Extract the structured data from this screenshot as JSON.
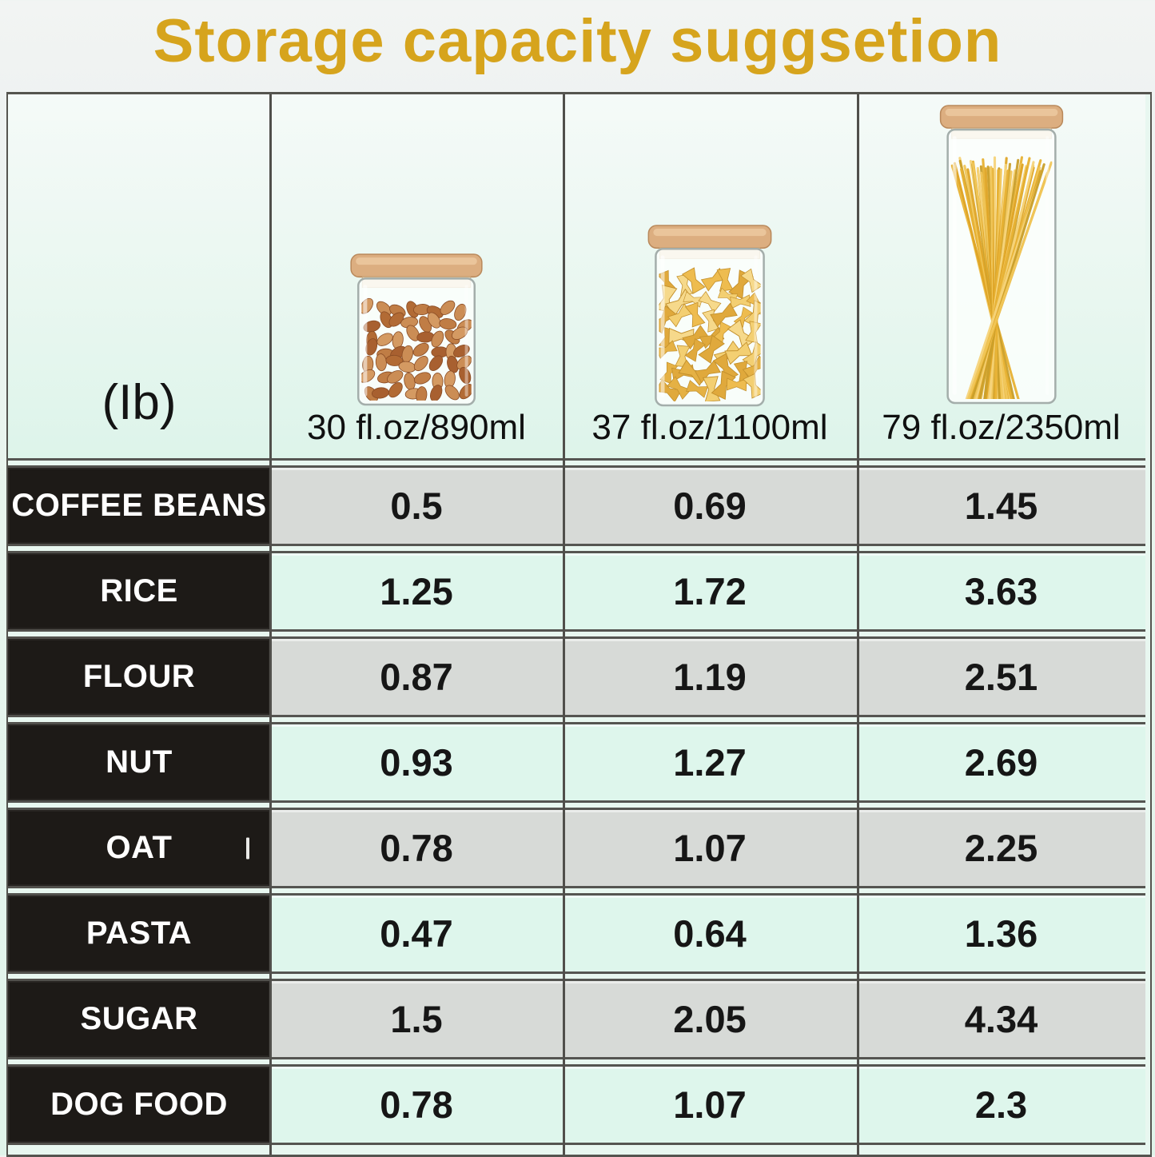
{
  "title": "Storage capacity suggsetion",
  "header": {
    "unit_label": "(Ib)",
    "columns": [
      {
        "label": "30 fl.oz/890ml",
        "jar": "almond-jar"
      },
      {
        "label": "37 fl.oz/1100ml",
        "jar": "farfalle-jar"
      },
      {
        "label": "79 fl.oz/2350ml",
        "jar": "spaghetti-jar"
      }
    ]
  },
  "rows": [
    {
      "label": "COFFEE BEANS",
      "values": [
        "0.5",
        "0.69",
        "1.45"
      ]
    },
    {
      "label": "RICE",
      "values": [
        "1.25",
        "1.72",
        "3.63"
      ]
    },
    {
      "label": "FLOUR",
      "values": [
        "0.87",
        "1.19",
        "2.51"
      ]
    },
    {
      "label": "NUT",
      "values": [
        "0.93",
        "1.27",
        "2.69"
      ]
    },
    {
      "label": "OAT",
      "values": [
        "0.78",
        "1.07",
        "2.25"
      ]
    },
    {
      "label": "PASTA",
      "values": [
        "0.47",
        "0.64",
        "1.36"
      ]
    },
    {
      "label": "SUGAR",
      "values": [
        "1.5",
        "2.05",
        "4.34"
      ]
    },
    {
      "label": "DOG FOOD",
      "values": [
        "0.78",
        "1.07",
        "2.3"
      ]
    }
  ],
  "colors": {
    "title_gold": "#d6a41d",
    "row_label_bg": "#1d1a17",
    "row_gray_bg": "#d7dad7",
    "row_mint_bg": "#def6ec",
    "header_mint_bg": "#e3f6ee",
    "grid_line": "#504f4b",
    "lid_wood": "#dcae80",
    "pasta_gold": "#e7b133"
  },
  "chart_data": {
    "type": "table",
    "title": "Storage capacity suggsetion",
    "unit": "lb",
    "categories": [
      "COFFEE BEANS",
      "RICE",
      "FLOUR",
      "NUT",
      "OAT",
      "PASTA",
      "SUGAR",
      "DOG FOOD"
    ],
    "series": [
      {
        "name": "30 fl.oz/890ml",
        "values": [
          0.5,
          1.25,
          0.87,
          0.93,
          0.78,
          0.47,
          1.5,
          0.78
        ]
      },
      {
        "name": "37 fl.oz/1100ml",
        "values": [
          0.69,
          1.72,
          1.19,
          1.27,
          1.07,
          0.64,
          2.05,
          1.07
        ]
      },
      {
        "name": "79 fl.oz/2350ml",
        "values": [
          1.45,
          3.63,
          2.51,
          2.69,
          2.25,
          1.36,
          4.34,
          2.3
        ]
      }
    ]
  }
}
